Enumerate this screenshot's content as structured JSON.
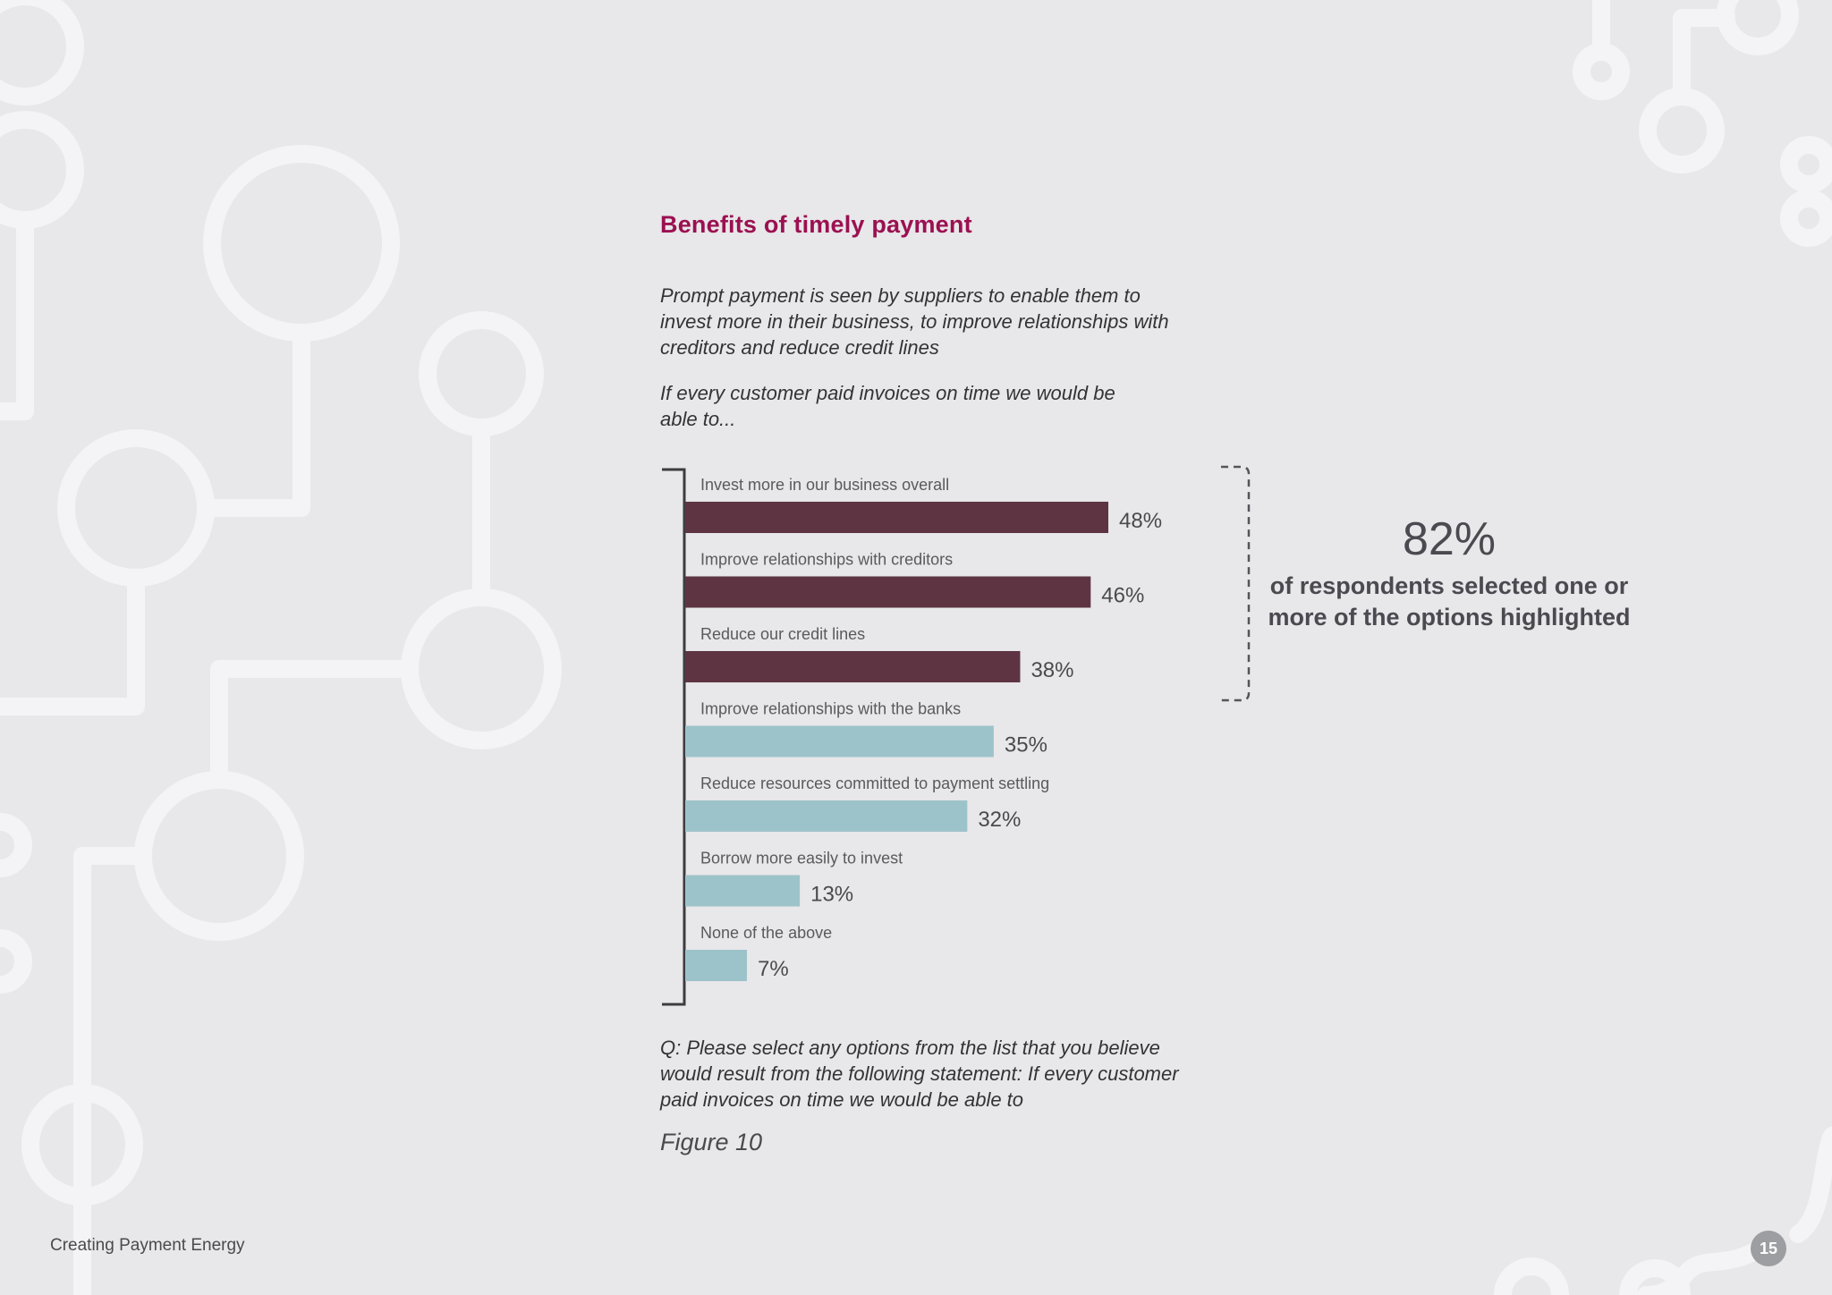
{
  "title": "Benefits of timely payment",
  "intro_1": "Prompt payment is seen by suppliers to enable them to invest more in their business, to improve relationships with creditors and reduce credit lines",
  "intro_2": "If every customer paid invoices on time we would be able to...",
  "chart_data": {
    "type": "bar",
    "orientation": "horizontal",
    "categories": [
      "Invest more in our business overall",
      "Improve relationships with creditors",
      "Reduce our credit lines",
      "Improve relationships with the banks",
      "Reduce resources committed to payment settling",
      "Borrow more easily to invest",
      "None of the above"
    ],
    "values": [
      48,
      46,
      38,
      35,
      32,
      13,
      7
    ],
    "value_labels": [
      "48%",
      "46%",
      "38%",
      "35%",
      "32%",
      "13%",
      "7%"
    ],
    "highlighted": [
      true,
      true,
      true,
      false,
      false,
      false,
      false
    ],
    "colors": {
      "highlighted": "#5e3443",
      "normal": "#9dc3ca"
    },
    "xlim": [
      0,
      48
    ],
    "grid": false,
    "legend": "none"
  },
  "callout": {
    "big": "82%",
    "text": "of respondents selected one or more of the options highlighted"
  },
  "question": "Q: Please select any options from the list that you believe would result from the following statement: If every customer paid invoices on time we would be able to",
  "figure_label": "Figure 10",
  "footer": {
    "text": "Creating Payment Energy",
    "page_number": "15"
  }
}
